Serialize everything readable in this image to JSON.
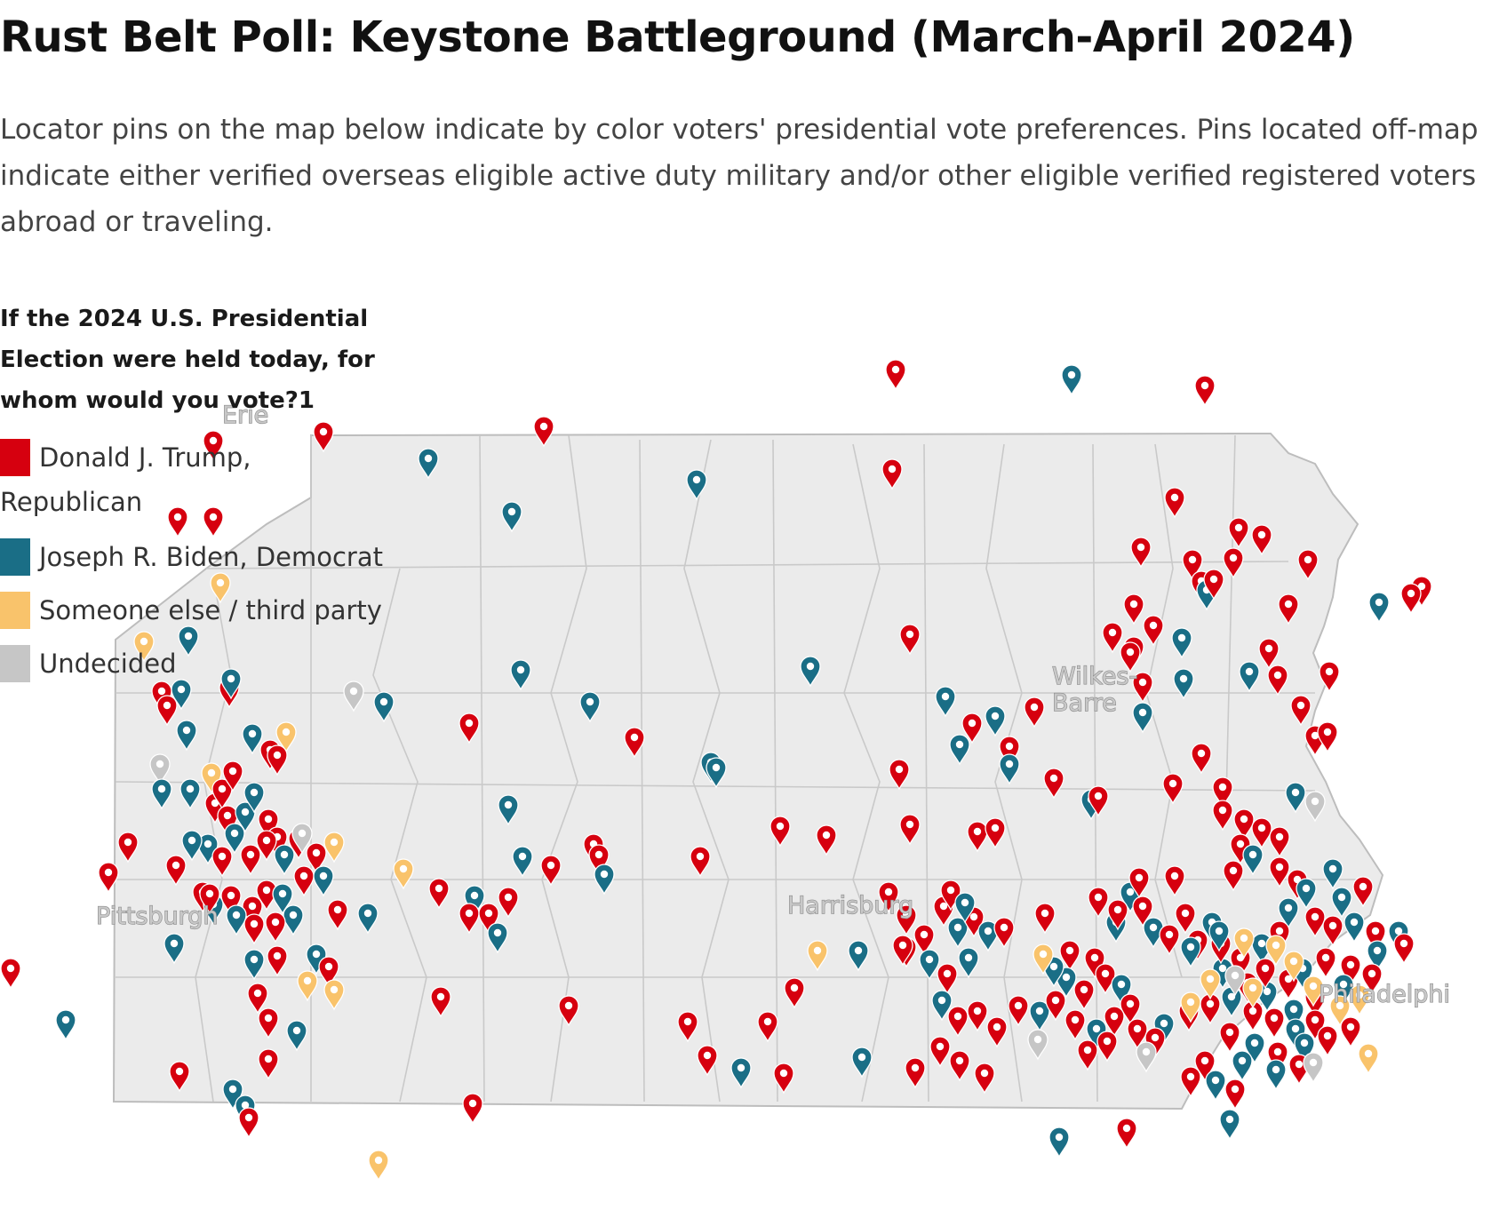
{
  "title": "Rust Belt Poll: Keystone Battleground (March-April 2024)",
  "subtitle": "Locator pins on the map below indicate by color voters' presidential vote preferences. Pins located off-map indicate either verified overseas eligible active duty military and/or other eligible verified registered voters abroad or traveling.",
  "legend": {
    "question": "If the 2024 U.S. Presidential Election were held today, for whom would you vote?1",
    "items": [
      {
        "label_line1": "Donald J. Trump,",
        "label_line2": "Republican",
        "color": "#d6000f"
      },
      {
        "label_line1": "Joseph R. Biden, Democrat",
        "color": "#1a6e86"
      },
      {
        "label_line1": "Someone else / third party",
        "color": "#f9c36b"
      },
      {
        "label_line1": "Undecided",
        "color": "#c6c6c6"
      }
    ]
  },
  "cities": [
    {
      "name": "Pittsburgh",
      "lines": [
        "Pittsburgh"
      ]
    },
    {
      "name": "Harrisburg",
      "lines": [
        "Harrisburg"
      ]
    },
    {
      "name": "Wilkes-Barre",
      "lines": [
        "Wilkes-",
        "Barre"
      ]
    },
    {
      "name": "Philadelphia",
      "lines": [
        "Philadelphi"
      ]
    },
    {
      "name": "Erie",
      "lines": [
        "Erie"
      ]
    }
  ],
  "map": {
    "region": "Pennsylvania",
    "pin_colors": {
      "trump": "#d6000f",
      "biden": "#1a6e86",
      "third": "#f9c36b",
      "undecided": "#c6c6c6"
    },
    "state_fill": "#ebebeb",
    "border_color": "#bdbdbd"
  }
}
